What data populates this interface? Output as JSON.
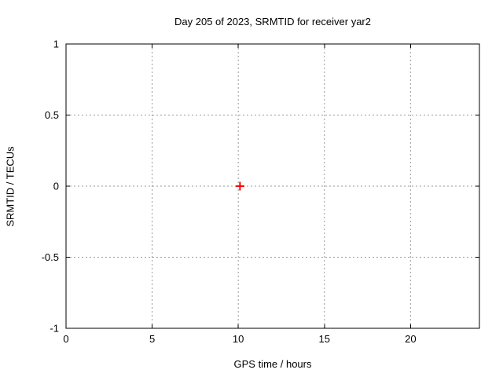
{
  "chart_data": {
    "type": "scatter",
    "title": "Day 205 of 2023, SRMTID for receiver yar2",
    "xlabel": "GPS time / hours",
    "ylabel": "SRMTID / TECUs",
    "xlim": [
      0,
      24
    ],
    "ylim": [
      -1,
      1
    ],
    "xticks": [
      0,
      5,
      10,
      15,
      20
    ],
    "yticks": [
      -1,
      -0.5,
      0,
      0.5,
      1
    ],
    "grid": true,
    "legend_position": "none",
    "series": [
      {
        "name": "SRMTID",
        "marker": "plus",
        "color": "#ff0000",
        "points": [
          {
            "x": 10.1,
            "y": 0
          }
        ]
      }
    ]
  },
  "colors": {
    "background": "#ffffff",
    "border": "#000000",
    "grid": "#999999",
    "tick": "#000000",
    "text": "#000000",
    "marker": "#ff0000"
  }
}
